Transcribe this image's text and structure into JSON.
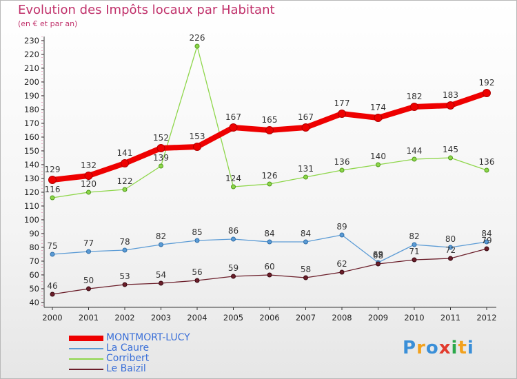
{
  "header": {
    "title": "Evolution des Impôts locaux par Habitant",
    "subtitle": "(en € et par an)"
  },
  "logo": {
    "text": "Proxiti",
    "colors": [
      "#3a8fd8",
      "#f2a11d",
      "#3a8fd8",
      "#e23b2e",
      "#2aa84a",
      "#f2a11d",
      "#3a8fd8"
    ]
  },
  "chart_data": {
    "type": "line",
    "title": "Evolution des Impôts locaux par Habitant",
    "subtitle": "(en € et par an)",
    "xlabel": "",
    "ylabel": "",
    "x": [
      "2000",
      "2001",
      "2002",
      "2003",
      "2004",
      "2005",
      "2006",
      "2007",
      "2008",
      "2009",
      "2010",
      "2011",
      "2012"
    ],
    "ylim": [
      40,
      230
    ],
    "yticks": [
      40,
      50,
      60,
      70,
      80,
      90,
      100,
      110,
      120,
      130,
      140,
      150,
      160,
      170,
      180,
      190,
      200,
      210,
      220,
      230
    ],
    "grid": false,
    "legend_position": "bottom",
    "series": [
      {
        "name": "MONTMORT-LUCY",
        "color": "#ee0000",
        "width": 8,
        "values": [
          129,
          132,
          141,
          152,
          153,
          167,
          165,
          167,
          177,
          174,
          182,
          183,
          192
        ]
      },
      {
        "name": "La Caure",
        "color": "#5b9bd5",
        "width": 1.3,
        "values": [
          75,
          77,
          78,
          82,
          85,
          86,
          84,
          84,
          89,
          69,
          82,
          80,
          84
        ],
        "labels": [
          "75",
          "77",
          "78",
          "82",
          "85",
          "86",
          "84",
          "84",
          "89",
          "69",
          "82",
          "80",
          "84"
        ]
      },
      {
        "name": "Corribert",
        "color": "#8ed64a",
        "width": 1.3,
        "values": [
          116,
          120,
          122,
          139,
          226,
          124,
          126,
          131,
          136,
          140,
          144,
          145,
          136
        ]
      },
      {
        "name": "Le Baizil",
        "color": "#6b1e2a",
        "width": 1.3,
        "values": [
          46,
          50,
          53,
          54,
          56,
          59,
          60,
          58,
          62,
          68,
          71,
          72,
          79
        ],
        "labels": [
          "46",
          "50",
          "53",
          "54",
          "56",
          "59",
          "60",
          "58",
          "62",
          "68",
          "71",
          "72",
          "79"
        ]
      }
    ]
  }
}
